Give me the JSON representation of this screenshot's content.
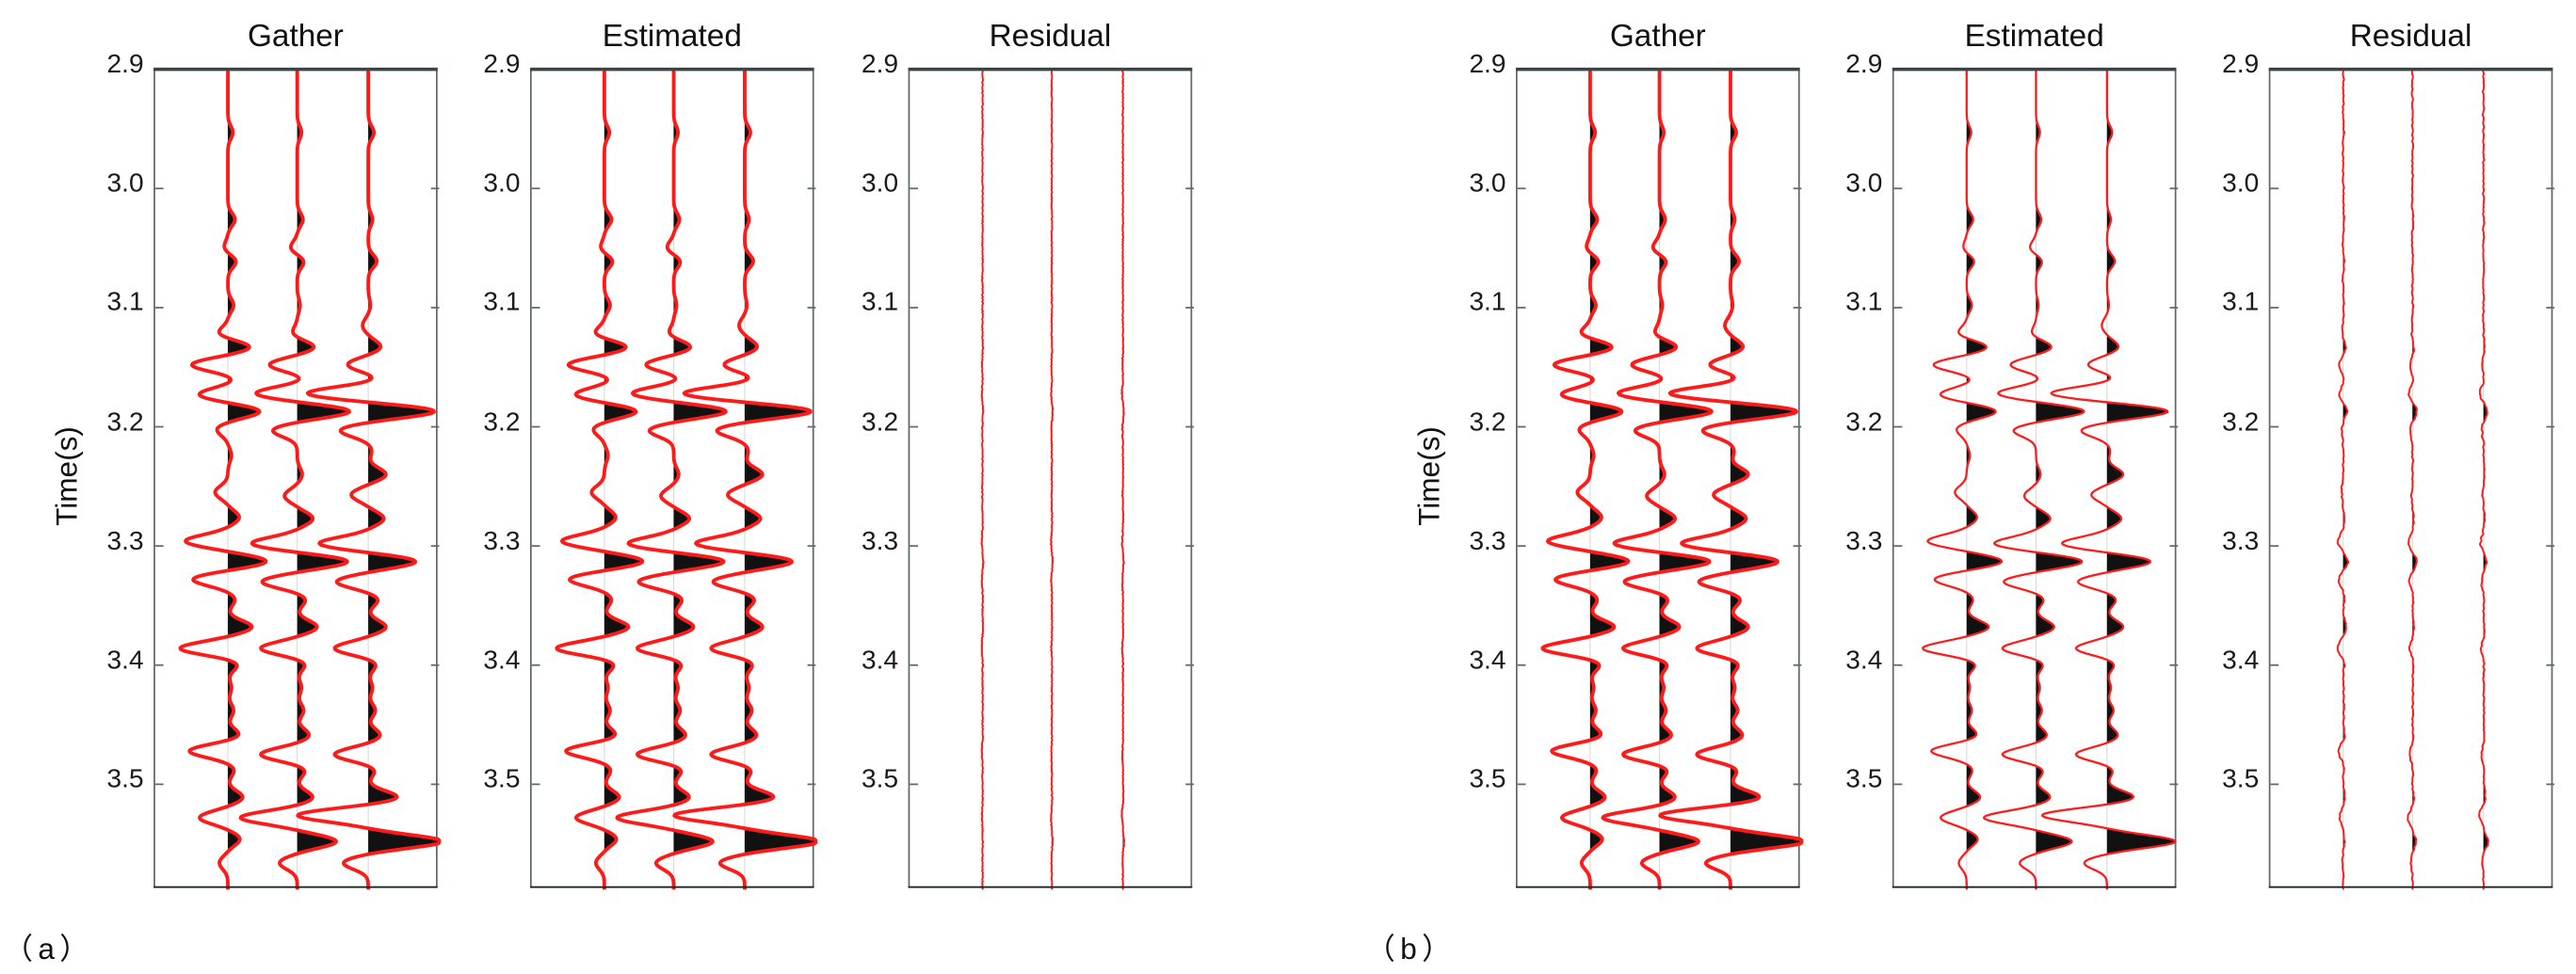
{
  "figure": {
    "subfigures": [
      {
        "label": "（a）",
        "ylabel": "Time(s)",
        "panels": [
          {
            "title": "Gather",
            "style": "gather"
          },
          {
            "title": "Estimated",
            "style": "gather"
          },
          {
            "title": "Residual",
            "style": "residual_a"
          }
        ]
      },
      {
        "label": "（b）",
        "ylabel": "Time(s)",
        "panels": [
          {
            "title": "Gather",
            "style": "gather"
          },
          {
            "title": "Estimated",
            "style": "estimated_b"
          },
          {
            "title": "Residual",
            "style": "residual_b"
          }
        ]
      }
    ],
    "yticks": [
      "2.9",
      "3.0",
      "3.1",
      "3.2",
      "3.3",
      "3.4",
      "3.5"
    ]
  },
  "colors": {
    "trace": "#ff1a1a",
    "fill": "#111111",
    "axis": "#5e6a6e",
    "text": "#111111"
  },
  "chart_data": {
    "type": "seismic_wiggle",
    "title": "",
    "ylabel": "Time(s)",
    "ylim": [
      2.9,
      3.59
    ],
    "yticks": [
      2.9,
      3.0,
      3.1,
      3.2,
      3.3,
      3.4,
      3.5
    ],
    "n_traces_per_panel": 3,
    "panel_titles": [
      "Gather",
      "Estimated",
      "Residual"
    ],
    "subfigure_labels": [
      "(a)",
      "(b)"
    ],
    "events_trace1": [
      [
        2.953,
        0.07
      ],
      [
        3.026,
        0.1
      ],
      [
        3.05,
        -0.06
      ],
      [
        3.061,
        0.12
      ],
      [
        3.098,
        0.08
      ],
      [
        3.122,
        -0.15
      ],
      [
        3.133,
        0.33
      ],
      [
        3.148,
        -0.52
      ],
      [
        3.16,
        0.1
      ],
      [
        3.173,
        -0.42
      ],
      [
        3.187,
        0.46
      ],
      [
        3.202,
        -0.16
      ],
      [
        3.224,
        0.05
      ],
      [
        3.255,
        -0.18
      ],
      [
        3.276,
        0.16
      ],
      [
        3.296,
        -0.6
      ],
      [
        3.313,
        0.55
      ],
      [
        3.328,
        -0.5
      ],
      [
        3.345,
        0.1
      ],
      [
        3.368,
        0.34
      ],
      [
        3.386,
        -0.68
      ],
      [
        3.399,
        0.15
      ],
      [
        3.419,
        0.05
      ],
      [
        3.438,
        0.08
      ],
      [
        3.459,
        0.17
      ],
      [
        3.472,
        -0.55
      ],
      [
        3.488,
        0.09
      ],
      [
        3.511,
        0.21
      ],
      [
        3.528,
        -0.4
      ],
      [
        3.546,
        0.17
      ],
      [
        3.566,
        -0.12
      ]
    ],
    "events_trace2": [
      [
        2.953,
        0.06
      ],
      [
        3.026,
        0.08
      ],
      [
        3.05,
        -0.1
      ],
      [
        3.061,
        0.1
      ],
      [
        3.098,
        0.04
      ],
      [
        3.122,
        -0.08
      ],
      [
        3.133,
        0.25
      ],
      [
        3.148,
        -0.4
      ],
      [
        3.16,
        0.1
      ],
      [
        3.172,
        -0.6
      ],
      [
        3.187,
        0.75
      ],
      [
        3.203,
        -0.35
      ],
      [
        3.24,
        0.07
      ],
      [
        3.258,
        -0.18
      ],
      [
        3.277,
        0.22
      ],
      [
        3.298,
        -0.65
      ],
      [
        3.313,
        0.72
      ],
      [
        3.33,
        -0.5
      ],
      [
        3.345,
        0.12
      ],
      [
        3.368,
        0.28
      ],
      [
        3.386,
        -0.52
      ],
      [
        3.399,
        0.12
      ],
      [
        3.419,
        0.06
      ],
      [
        3.438,
        0.09
      ],
      [
        3.459,
        0.17
      ],
      [
        3.475,
        -0.52
      ],
      [
        3.488,
        0.12
      ],
      [
        3.511,
        0.22
      ],
      [
        3.528,
        -0.8
      ],
      [
        3.548,
        0.55
      ],
      [
        3.566,
        -0.25
      ]
    ],
    "events_trace3": [
      [
        2.953,
        0.08
      ],
      [
        3.026,
        0.06
      ],
      [
        3.061,
        0.12
      ],
      [
        3.098,
        0.03
      ],
      [
        3.115,
        -0.08
      ],
      [
        3.133,
        0.18
      ],
      [
        3.148,
        -0.3
      ],
      [
        3.16,
        0.13
      ],
      [
        3.172,
        -0.88
      ],
      [
        3.187,
        0.95
      ],
      [
        3.203,
        -0.4
      ],
      [
        3.22,
        0.05
      ],
      [
        3.24,
        0.25
      ],
      [
        3.257,
        -0.24
      ],
      [
        3.277,
        0.22
      ],
      [
        3.298,
        -0.7
      ],
      [
        3.313,
        0.68
      ],
      [
        3.33,
        -0.45
      ],
      [
        3.345,
        0.14
      ],
      [
        3.368,
        0.25
      ],
      [
        3.386,
        -0.48
      ],
      [
        3.399,
        0.12
      ],
      [
        3.419,
        0.06
      ],
      [
        3.438,
        0.1
      ],
      [
        3.459,
        0.17
      ],
      [
        3.475,
        -0.48
      ],
      [
        3.488,
        0.1
      ],
      [
        3.511,
        0.42
      ],
      [
        3.526,
        -1.0
      ],
      [
        3.548,
        1.05
      ],
      [
        3.566,
        -0.35
      ]
    ]
  }
}
